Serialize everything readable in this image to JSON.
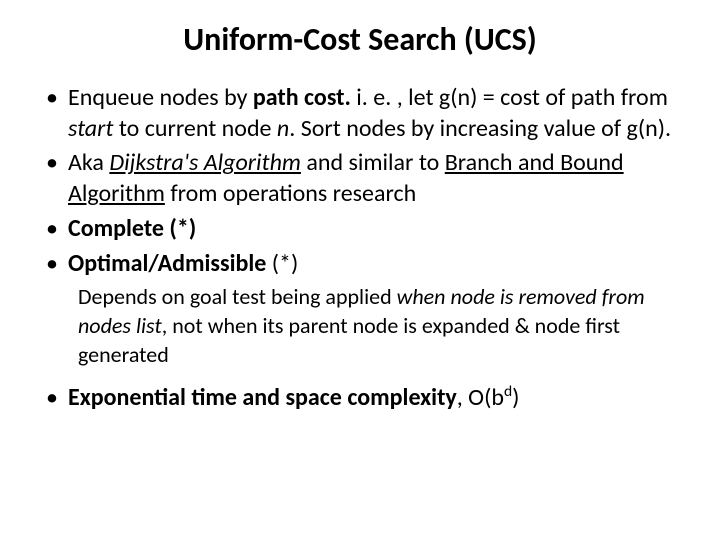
{
  "title": "Uniform-Cost Search (UCS)",
  "title_fontsize": 32,
  "body_fontsize": 24,
  "sub_fontsize": 22,
  "background_color": "#ffffff",
  "text_color": "#000000",
  "bullets": {
    "b1": {
      "pre": "Enqueue nodes by ",
      "bold1": "path cost.",
      "mid1": " i. e. , let g(n) = cost of path from ",
      "ital1": "start",
      "mid2": " to current node ",
      "ital2": "n",
      "post": ". Sort nodes by increasing value of g(n)."
    },
    "b2": {
      "pre": "Aka ",
      "under1": "Dijkstra's Algorithm",
      "mid": " and similar to ",
      "under2": "Branch and Bound Algorithm",
      "post": " from operations research"
    },
    "b3": {
      "bold": "Complete (*)"
    },
    "b4": {
      "bold": "Optimal/Admissible",
      "post": " (*)"
    },
    "sub": {
      "pre": "Depends on goal test being applied ",
      "ital1": "when node is removed from nodes list",
      "mid": ", not when its parent node is expanded & node first generated"
    },
    "b5": {
      "bold": "Exponential time and space complexity",
      "post": ", O(b",
      "sup": "d",
      "post2": ")"
    }
  }
}
